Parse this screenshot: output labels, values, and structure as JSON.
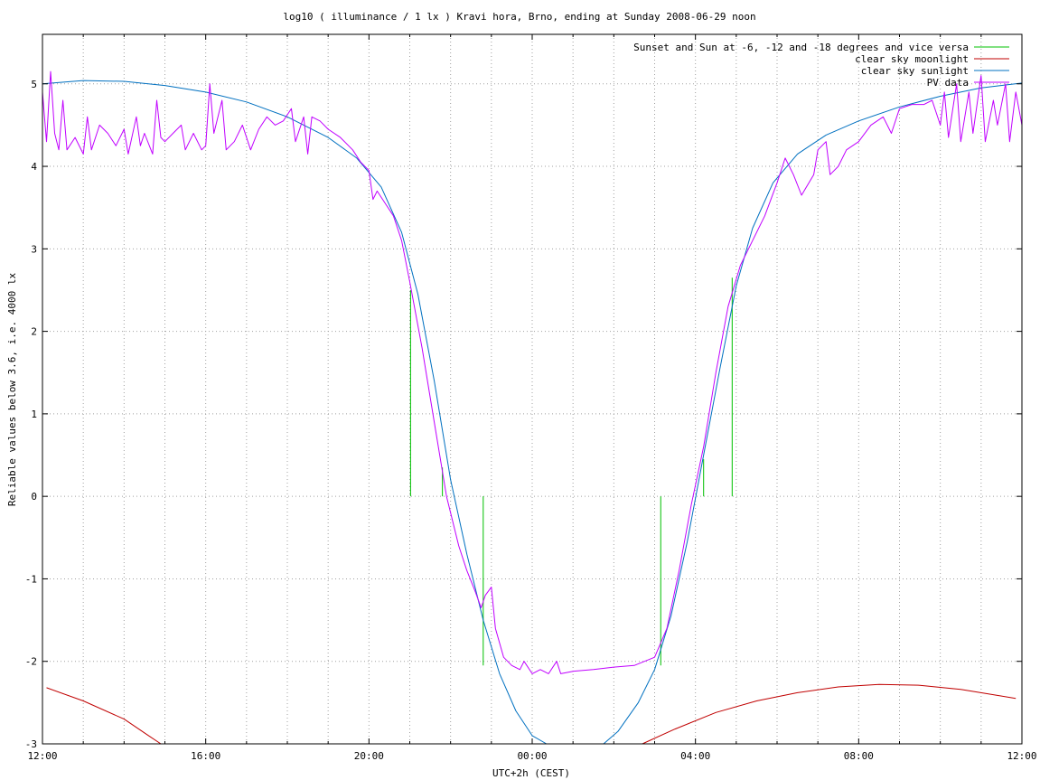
{
  "chart_data": {
    "type": "line",
    "title": "log10 ( illuminance / 1 lx ) Kravi hora, Brno, ending at Sunday 2008-06-29 noon",
    "xlabel": "UTC+2h (CEST)",
    "ylabel": "Reliable values below 3.6, i.e. 4000 lx",
    "x_unit": "hours",
    "xlim": [
      0,
      24
    ],
    "ylim": [
      -3,
      5.6
    ],
    "x_ticks": [
      {
        "x": 0,
        "label": "12:00"
      },
      {
        "x": 4,
        "label": "16:00"
      },
      {
        "x": 8,
        "label": "20:00"
      },
      {
        "x": 12,
        "label": "00:00"
      },
      {
        "x": 16,
        "label": "04:00"
      },
      {
        "x": 20,
        "label": "08:00"
      },
      {
        "x": 24,
        "label": "12:00"
      }
    ],
    "y_ticks": [
      {
        "y": -3,
        "label": "-3"
      },
      {
        "y": -2,
        "label": "-2"
      },
      {
        "y": -1,
        "label": "-1"
      },
      {
        "y": 0,
        "label": "0"
      },
      {
        "y": 1,
        "label": "1"
      },
      {
        "y": 2,
        "label": "2"
      },
      {
        "y": 3,
        "label": "3"
      },
      {
        "y": 4,
        "label": "4"
      },
      {
        "y": 5,
        "label": "5"
      }
    ],
    "grid": true,
    "legend_position": "top-right",
    "series": [
      {
        "name": "Sunset and Sun at -6, -12 and -18 degrees and vice versa",
        "color": "#00c000",
        "style": "impulses",
        "points": [
          [
            9.02,
            2.5
          ],
          [
            9.8,
            0.35
          ],
          [
            10.8,
            -2.05
          ],
          [
            15.15,
            -2.05
          ],
          [
            16.2,
            0.45
          ],
          [
            16.9,
            2.65
          ]
        ]
      },
      {
        "name": "clear sky moonlight",
        "color": "#c00000",
        "style": "line",
        "points": [
          [
            0.1,
            -2.32
          ],
          [
            1.0,
            -2.48
          ],
          [
            2.0,
            -2.7
          ],
          [
            2.6,
            -2.9
          ],
          [
            2.9,
            -3.0
          ],
          [
            14.7,
            -3.0
          ],
          [
            15.5,
            -2.82
          ],
          [
            16.5,
            -2.62
          ],
          [
            17.5,
            -2.48
          ],
          [
            18.5,
            -2.38
          ],
          [
            19.5,
            -2.31
          ],
          [
            20.5,
            -2.28
          ],
          [
            21.5,
            -2.29
          ],
          [
            22.5,
            -2.34
          ],
          [
            23.5,
            -2.42
          ],
          [
            23.85,
            -2.45
          ]
        ]
      },
      {
        "name": "clear sky sunlight",
        "color": "#0070c0",
        "style": "line",
        "points": [
          [
            0,
            5.0
          ],
          [
            1.0,
            5.04
          ],
          [
            2.0,
            5.03
          ],
          [
            3.0,
            4.98
          ],
          [
            4.0,
            4.9
          ],
          [
            5.0,
            4.78
          ],
          [
            6.0,
            4.6
          ],
          [
            7.0,
            4.35
          ],
          [
            7.7,
            4.1
          ],
          [
            8.3,
            3.75
          ],
          [
            8.8,
            3.2
          ],
          [
            9.2,
            2.45
          ],
          [
            9.6,
            1.4
          ],
          [
            10.0,
            0.2
          ],
          [
            10.4,
            -0.7
          ],
          [
            10.8,
            -1.5
          ],
          [
            11.2,
            -2.15
          ],
          [
            11.6,
            -2.6
          ],
          [
            12.0,
            -2.9
          ],
          [
            12.35,
            -3.0
          ],
          [
            13.75,
            -3.0
          ],
          [
            14.1,
            -2.85
          ],
          [
            14.6,
            -2.5
          ],
          [
            15.0,
            -2.1
          ],
          [
            15.4,
            -1.45
          ],
          [
            15.8,
            -0.55
          ],
          [
            16.2,
            0.5
          ],
          [
            16.6,
            1.55
          ],
          [
            17.0,
            2.55
          ],
          [
            17.4,
            3.25
          ],
          [
            17.9,
            3.8
          ],
          [
            18.5,
            4.15
          ],
          [
            19.2,
            4.38
          ],
          [
            20.0,
            4.55
          ],
          [
            21.0,
            4.72
          ],
          [
            22.0,
            4.85
          ],
          [
            23.0,
            4.95
          ],
          [
            24.0,
            5.01
          ]
        ]
      },
      {
        "name": "PV data",
        "color": "#c000ff",
        "style": "line",
        "points": [
          [
            0.0,
            4.9
          ],
          [
            0.1,
            4.3
          ],
          [
            0.2,
            5.15
          ],
          [
            0.3,
            4.4
          ],
          [
            0.4,
            4.2
          ],
          [
            0.5,
            4.8
          ],
          [
            0.6,
            4.2
          ],
          [
            0.8,
            4.35
          ],
          [
            1.0,
            4.15
          ],
          [
            1.1,
            4.6
          ],
          [
            1.2,
            4.2
          ],
          [
            1.4,
            4.5
          ],
          [
            1.6,
            4.4
          ],
          [
            1.8,
            4.25
          ],
          [
            2.0,
            4.45
          ],
          [
            2.1,
            4.15
          ],
          [
            2.3,
            4.6
          ],
          [
            2.4,
            4.25
          ],
          [
            2.5,
            4.4
          ],
          [
            2.7,
            4.15
          ],
          [
            2.8,
            4.8
          ],
          [
            2.9,
            4.35
          ],
          [
            3.0,
            4.3
          ],
          [
            3.2,
            4.4
          ],
          [
            3.4,
            4.5
          ],
          [
            3.5,
            4.2
          ],
          [
            3.7,
            4.4
          ],
          [
            3.9,
            4.2
          ],
          [
            4.0,
            4.25
          ],
          [
            4.1,
            5.0
          ],
          [
            4.2,
            4.4
          ],
          [
            4.4,
            4.8
          ],
          [
            4.5,
            4.2
          ],
          [
            4.7,
            4.3
          ],
          [
            4.9,
            4.5
          ],
          [
            5.1,
            4.2
          ],
          [
            5.3,
            4.45
          ],
          [
            5.5,
            4.6
          ],
          [
            5.7,
            4.5
          ],
          [
            5.9,
            4.55
          ],
          [
            6.1,
            4.7
          ],
          [
            6.2,
            4.3
          ],
          [
            6.4,
            4.6
          ],
          [
            6.5,
            4.15
          ],
          [
            6.6,
            4.6
          ],
          [
            6.8,
            4.55
          ],
          [
            7.0,
            4.45
          ],
          [
            7.3,
            4.35
          ],
          [
            7.6,
            4.2
          ],
          [
            7.8,
            4.05
          ],
          [
            8.0,
            3.95
          ],
          [
            8.1,
            3.6
          ],
          [
            8.2,
            3.7
          ],
          [
            8.4,
            3.55
          ],
          [
            8.6,
            3.4
          ],
          [
            8.8,
            3.1
          ],
          [
            9.0,
            2.6
          ],
          [
            9.3,
            1.8
          ],
          [
            9.6,
            0.9
          ],
          [
            9.9,
            0.0
          ],
          [
            10.2,
            -0.6
          ],
          [
            10.4,
            -0.9
          ],
          [
            10.6,
            -1.15
          ],
          [
            10.75,
            -1.35
          ],
          [
            10.85,
            -1.2
          ],
          [
            11.0,
            -1.1
          ],
          [
            11.1,
            -1.6
          ],
          [
            11.3,
            -1.95
          ],
          [
            11.5,
            -2.05
          ],
          [
            11.7,
            -2.1
          ],
          [
            11.8,
            -2.0
          ],
          [
            12.0,
            -2.15
          ],
          [
            12.2,
            -2.1
          ],
          [
            12.4,
            -2.15
          ],
          [
            12.6,
            -2.0
          ],
          [
            12.7,
            -2.15
          ],
          [
            13.0,
            -2.12
          ],
          [
            13.5,
            -2.1
          ],
          [
            14.0,
            -2.07
          ],
          [
            14.5,
            -2.05
          ],
          [
            15.0,
            -1.95
          ],
          [
            15.3,
            -1.6
          ],
          [
            15.6,
            -0.9
          ],
          [
            15.9,
            -0.1
          ],
          [
            16.2,
            0.6
          ],
          [
            16.5,
            1.5
          ],
          [
            16.8,
            2.3
          ],
          [
            17.1,
            2.8
          ],
          [
            17.4,
            3.1
          ],
          [
            17.7,
            3.4
          ],
          [
            18.0,
            3.8
          ],
          [
            18.2,
            4.1
          ],
          [
            18.4,
            3.9
          ],
          [
            18.6,
            3.65
          ],
          [
            18.9,
            3.9
          ],
          [
            19.0,
            4.2
          ],
          [
            19.2,
            4.3
          ],
          [
            19.3,
            3.9
          ],
          [
            19.5,
            4.0
          ],
          [
            19.7,
            4.2
          ],
          [
            20.0,
            4.3
          ],
          [
            20.3,
            4.5
          ],
          [
            20.6,
            4.6
          ],
          [
            20.8,
            4.4
          ],
          [
            21.0,
            4.7
          ],
          [
            21.3,
            4.75
          ],
          [
            21.6,
            4.75
          ],
          [
            21.8,
            4.8
          ],
          [
            22.0,
            4.5
          ],
          [
            22.1,
            4.9
          ],
          [
            22.2,
            4.35
          ],
          [
            22.4,
            5.0
          ],
          [
            22.5,
            4.3
          ],
          [
            22.7,
            4.9
          ],
          [
            22.8,
            4.4
          ],
          [
            23.0,
            5.1
          ],
          [
            23.1,
            4.3
          ],
          [
            23.3,
            4.8
          ],
          [
            23.4,
            4.5
          ],
          [
            23.6,
            5.0
          ],
          [
            23.7,
            4.3
          ],
          [
            23.85,
            4.9
          ],
          [
            24.0,
            4.5
          ]
        ]
      }
    ]
  }
}
